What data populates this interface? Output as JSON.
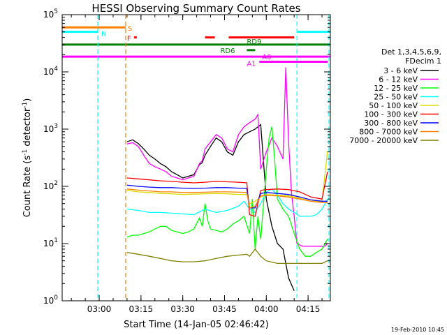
{
  "chart_data": {
    "type": "line",
    "title": "HESSI Observing Summary Count Rates",
    "xlabel": "Start Time (14-Jan-05 02:46:42)",
    "ylabel": "Count Rate (s",
    "ylabel_sup": "-1",
    "ylabel_tail": " detector",
    "ylabel_sup2": "-1",
    "ylabel_end": ")",
    "y_scale": "log",
    "ylim": [
      1,
      100000
    ],
    "xlim": [
      "02:46:42",
      "04:23:00"
    ],
    "x_ticks": [
      "03:00",
      "03:15",
      "03:30",
      "03:45",
      "04:00",
      "04:15"
    ],
    "y_ticks": [
      "10^0",
      "10^1",
      "10^2",
      "10^3",
      "10^4",
      "10^5"
    ],
    "y_tick_base": "10",
    "y_tick_exps": [
      "0",
      "1",
      "2",
      "3",
      "4",
      "5"
    ],
    "legend": {
      "placement": "right",
      "header1": "Det 1,3,4,5,6,9,",
      "header2": "FDecim 1",
      "entries": [
        {
          "label": "3 - 6 keV",
          "color": "#000000"
        },
        {
          "label": "6 - 12 keV",
          "color": "#ff00ff"
        },
        {
          "label": "12 - 25 keV",
          "color": "#00ff00"
        },
        {
          "label": "25 - 50 keV",
          "color": "#00ffff"
        },
        {
          "label": "50 - 100 keV",
          "color": "#dddd00"
        },
        {
          "label": "100 - 300 keV",
          "color": "#ff0000"
        },
        {
          "label": "300 - 800 keV",
          "color": "#0000ff"
        },
        {
          "label": "800 - 7000 keV",
          "color": "#ff8000"
        },
        {
          "label": "7000 - 20000 keV",
          "color": "#808000"
        }
      ]
    },
    "flags": [
      {
        "label": "S",
        "color": "#ff8000",
        "ranges": [
          [
            "02:46:42",
            "03:09:30"
          ]
        ],
        "level": 60000
      },
      {
        "label": "N",
        "color": "#00ffff",
        "ranges": [
          [
            "02:46:42",
            "02:59:30"
          ],
          [
            "04:11:00",
            "04:23:00"
          ]
        ],
        "level": 50000
      },
      {
        "label": "F",
        "color": "#ff0000",
        "ranges": [
          [
            "03:12:30",
            "03:13:30"
          ],
          [
            "03:38:00",
            "03:41:30"
          ],
          [
            "03:46:30",
            "04:10:00"
          ]
        ],
        "level": 40000
      },
      {
        "label": "RD9",
        "color": "#008000",
        "ranges": [
          [
            "02:46:42",
            "04:23:00"
          ]
        ],
        "level": 30000
      },
      {
        "label": "RD6",
        "color": "#008000",
        "ranges": [
          [
            "03:53:00",
            "03:56:00"
          ]
        ],
        "level": 24000
      },
      {
        "label": "A0",
        "color": "#ff00ff",
        "ranges": [
          [
            "02:46:42",
            "04:23:00"
          ],
          [
            "04:07:30",
            "04:08:00"
          ]
        ],
        "level": 18500
      },
      {
        "label": "A1",
        "color": "#ff00ff",
        "ranges": [
          [
            "03:57:30",
            "04:22:00"
          ]
        ],
        "level": 15000
      }
    ],
    "vlines": [
      {
        "t": "02:59:30",
        "color": "#00ffff"
      },
      {
        "t": "03:09:30",
        "color": "#ff8000"
      },
      {
        "t": "04:11:00",
        "color": "#00ffff"
      },
      {
        "t": "04:22:30",
        "color": "#00ffff"
      }
    ],
    "series": [
      {
        "name": "3 - 6 keV",
        "color": "#000000",
        "x": [
          "03:10",
          "03:12",
          "03:14",
          "03:16",
          "03:18",
          "03:20",
          "03:22",
          "03:24",
          "03:26",
          "03:28",
          "03:30",
          "03:32",
          "03:34",
          "03:36",
          "03:37",
          "03:38",
          "03:40",
          "03:42",
          "03:44",
          "03:46",
          "03:48",
          "03:50",
          "03:52",
          "03:54",
          "03:56",
          "03:58",
          "04:00",
          "04:02",
          "04:04",
          "04:06",
          "04:08",
          "04:10"
        ],
        "y": [
          600,
          650,
          560,
          450,
          350,
          300,
          250,
          220,
          180,
          160,
          140,
          150,
          160,
          240,
          260,
          350,
          500,
          700,
          600,
          400,
          350,
          600,
          800,
          900,
          1000,
          1200,
          60,
          20,
          10,
          8,
          2.5,
          1.5
        ]
      },
      {
        "name": "6 - 12 keV",
        "color": "#ff00ff",
        "x": [
          "03:10",
          "03:12",
          "03:14",
          "03:16",
          "03:18",
          "03:20",
          "03:22",
          "03:24",
          "03:26",
          "03:28",
          "03:30",
          "03:32",
          "03:34",
          "03:36",
          "03:37",
          "03:38",
          "03:40",
          "03:42",
          "03:44",
          "03:46",
          "03:48",
          "03:50",
          "03:52",
          "03:54",
          "03:56",
          "03:57",
          "03:58",
          "04:00",
          "04:02",
          "04:04",
          "04:06",
          "04:07",
          "04:08",
          "04:09",
          "04:10",
          "04:11",
          "04:13",
          "04:15",
          "04:17",
          "04:19",
          "04:20",
          "04:21",
          "04:22"
        ],
        "y": [
          550,
          580,
          500,
          350,
          250,
          220,
          200,
          180,
          150,
          140,
          130,
          140,
          150,
          250,
          280,
          450,
          600,
          800,
          700,
          450,
          400,
          800,
          1100,
          1300,
          1500,
          1800,
          200,
          400,
          700,
          500,
          300,
          12000,
          600,
          80,
          30,
          10,
          9,
          9,
          9,
          9,
          9,
          9,
          10
        ]
      },
      {
        "name": "12 - 25 keV",
        "color": "#00ff00",
        "x": [
          "03:10",
          "03:12",
          "03:14",
          "03:16",
          "03:18",
          "03:20",
          "03:22",
          "03:24",
          "03:26",
          "03:28",
          "03:30",
          "03:32",
          "03:34",
          "03:36",
          "03:37",
          "03:38",
          "03:39",
          "03:40",
          "03:42",
          "03:44",
          "03:46",
          "03:48",
          "03:50",
          "03:52",
          "03:54",
          "03:55",
          "03:56",
          "03:57",
          "03:58",
          "04:00",
          "04:01",
          "04:02",
          "04:03",
          "04:04",
          "04:06",
          "04:08",
          "04:10",
          "04:12",
          "04:14",
          "04:16",
          "04:18",
          "04:20",
          "04:22"
        ],
        "y": [
          13,
          14,
          14,
          15,
          16,
          18,
          20,
          20,
          17,
          16,
          15,
          16,
          18,
          28,
          20,
          50,
          25,
          18,
          17,
          16,
          18,
          22,
          25,
          30,
          15,
          60,
          8,
          30,
          12,
          200,
          700,
          1100,
          300,
          60,
          40,
          30,
          15,
          8,
          6,
          6,
          7,
          8,
          12
        ]
      },
      {
        "name": "25 - 50 keV",
        "color": "#00ffff",
        "x": [
          "03:10",
          "03:14",
          "03:18",
          "03:22",
          "03:26",
          "03:30",
          "03:34",
          "03:38",
          "03:42",
          "03:46",
          "03:50",
          "03:52",
          "03:54",
          "03:56",
          "03:58",
          "04:00",
          "04:02",
          "04:04",
          "04:06",
          "04:08",
          "04:10",
          "04:12",
          "04:14",
          "04:16",
          "04:18",
          "04:20",
          "04:22"
        ],
        "y": [
          40,
          38,
          35,
          35,
          34,
          33,
          32,
          40,
          35,
          38,
          45,
          55,
          40,
          35,
          50,
          80,
          90,
          70,
          50,
          40,
          35,
          30,
          30,
          30,
          32,
          40,
          60
        ]
      },
      {
        "name": "50 - 100 keV",
        "color": "#dddd00",
        "x": [
          "03:10",
          "03:14",
          "03:18",
          "03:22",
          "03:26",
          "03:30",
          "03:34",
          "03:38",
          "03:42",
          "03:46",
          "03:50",
          "03:53",
          "03:54",
          "03:56",
          "03:58",
          "04:00",
          "04:04",
          "04:08",
          "04:12",
          "04:16",
          "04:20",
          "04:22"
        ],
        "y": [
          85,
          80,
          78,
          75,
          74,
          72,
          73,
          74,
          75,
          74,
          72,
          72,
          50,
          55,
          65,
          72,
          70,
          68,
          62,
          55,
          55,
          420
        ]
      },
      {
        "name": "100 - 300 keV",
        "color": "#ff0000",
        "x": [
          "03:10",
          "03:14",
          "03:18",
          "03:22",
          "03:26",
          "03:30",
          "03:34",
          "03:38",
          "03:42",
          "03:46",
          "03:50",
          "03:53",
          "03:54",
          "03:56",
          "03:58",
          "04:00",
          "04:04",
          "04:08",
          "04:12",
          "04:16",
          "04:20",
          "04:22"
        ],
        "y": [
          140,
          135,
          130,
          125,
          122,
          118,
          115,
          118,
          122,
          120,
          118,
          115,
          32,
          30,
          85,
          88,
          90,
          88,
          80,
          65,
          60,
          180
        ]
      },
      {
        "name": "300 - 800 keV",
        "color": "#0000ff",
        "x": [
          "03:10",
          "03:14",
          "03:18",
          "03:22",
          "03:26",
          "03:30",
          "03:34",
          "03:38",
          "03:42",
          "03:46",
          "03:50",
          "03:53",
          "03:54",
          "03:56",
          "03:58",
          "04:00",
          "04:04",
          "04:08",
          "04:12",
          "04:16",
          "04:20",
          "04:22"
        ],
        "y": [
          105,
          100,
          97,
          95,
          95,
          93,
          92,
          93,
          95,
          95,
          93,
          92,
          42,
          42,
          75,
          78,
          75,
          72,
          65,
          58,
          55,
          55
        ]
      },
      {
        "name": "800 - 7000 keV",
        "color": "#ff8000",
        "x": [
          "03:10",
          "03:14",
          "03:18",
          "03:22",
          "03:26",
          "03:30",
          "03:34",
          "03:38",
          "03:42",
          "03:46",
          "03:50",
          "03:53",
          "03:54",
          "03:56",
          "03:58",
          "04:00",
          "04:04",
          "04:08",
          "04:12",
          "04:16",
          "04:20",
          "04:22"
        ],
        "y": [
          90,
          86,
          83,
          80,
          80,
          78,
          78,
          79,
          80,
          80,
          79,
          78,
          42,
          45,
          68,
          70,
          68,
          65,
          60,
          55,
          52,
          52
        ]
      },
      {
        "name": "7000 - 20000 keV",
        "color": "#808000",
        "x": [
          "03:10",
          "03:14",
          "03:18",
          "03:22",
          "03:26",
          "03:30",
          "03:34",
          "03:38",
          "03:42",
          "03:46",
          "03:50",
          "03:53",
          "03:54",
          "03:56",
          "03:58",
          "04:00",
          "04:04",
          "04:08",
          "04:12",
          "04:16",
          "04:20",
          "04:22"
        ],
        "y": [
          7,
          6.5,
          6,
          5.5,
          5,
          4.8,
          4.8,
          5,
          5.5,
          6,
          6.3,
          6.5,
          6,
          8,
          6,
          5,
          4.5,
          4.5,
          4.5,
          4.5,
          4.5,
          5
        ]
      }
    ]
  },
  "footer": {
    "date": "19-Feb-2010 10:45"
  }
}
